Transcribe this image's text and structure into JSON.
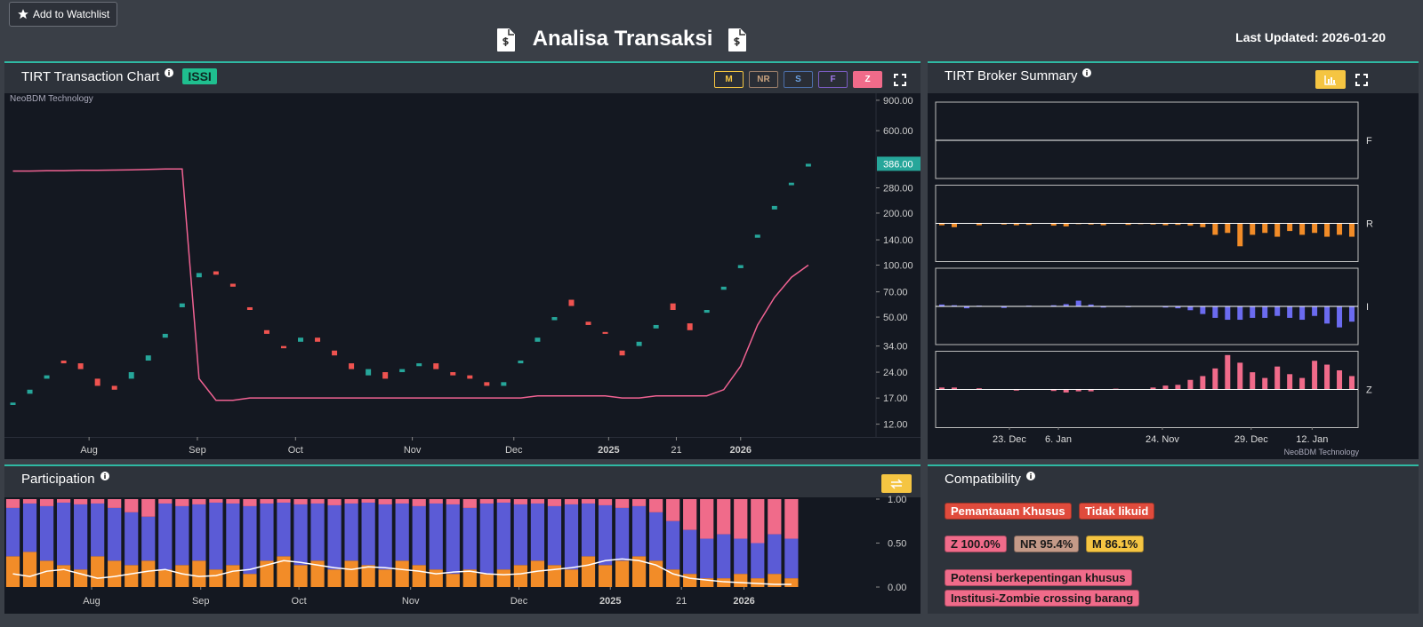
{
  "header": {
    "watchlist_button": "Add to Watchlist",
    "title": "Analisa Transaksi",
    "last_updated": "Last Updated: 2026-01-20"
  },
  "transaction_chart": {
    "title": "TIRT Transaction Chart",
    "badge": "ISSI",
    "buttons": [
      "M",
      "NR",
      "S",
      "F",
      "Z"
    ],
    "watermark": "NeoBDM Technology",
    "chart_data": {
      "type": "candlestick",
      "yscale": "log",
      "up_color": "#26a69a",
      "down_color": "#ef5350",
      "x": [
        0,
        1,
        2,
        3,
        4,
        5,
        6,
        7,
        8,
        9,
        10,
        11,
        12,
        13,
        14,
        15,
        16,
        17,
        18,
        19,
        20,
        21,
        22,
        23,
        24,
        25,
        26,
        27,
        28,
        29,
        30,
        31,
        32,
        33,
        34,
        35,
        36,
        37,
        38,
        39,
        40,
        41,
        42,
        43,
        44,
        45,
        46,
        47
      ],
      "open": [
        15.5,
        18,
        22,
        28,
        27,
        22,
        20,
        22,
        28,
        38,
        57,
        85,
        92,
        78,
        57,
        42,
        34,
        36,
        38,
        32,
        27,
        23,
        24,
        24,
        26,
        27,
        24,
        23,
        21,
        20,
        27,
        36,
        48,
        63,
        47,
        41,
        32,
        34,
        43,
        60,
        46,
        53,
        72,
        96,
        144,
        210,
        290,
        372
      ],
      "close": [
        16,
        19,
        23,
        27,
        25,
        20,
        19,
        24,
        30,
        40,
        60,
        90,
        88,
        75,
        55,
        40,
        33,
        38,
        36,
        30,
        25,
        25,
        22,
        25,
        27,
        25,
        23,
        22,
        20,
        21,
        28,
        38,
        50,
        58,
        45,
        40,
        30,
        36,
        45,
        55,
        42,
        55,
        75,
        100,
        150,
        220,
        300,
        386
      ],
      "line": {
        "color": "#f06292",
        "values": [
          350,
          350,
          352,
          352,
          354,
          354,
          355,
          356,
          358,
          360,
          360,
          22,
          16.5,
          16.5,
          17,
          17,
          17,
          17,
          17,
          17,
          17,
          17,
          17,
          17,
          17,
          17,
          17,
          17,
          17,
          17,
          17,
          17.5,
          17.5,
          17.5,
          17.5,
          17.5,
          17,
          17,
          17.5,
          17.5,
          17.5,
          17.5,
          19,
          26,
          45,
          65,
          85,
          100
        ]
      },
      "last_price": {
        "value": 386,
        "label": "386.00"
      },
      "xlim": [
        -0.5,
        51
      ],
      "ylim": [
        10,
        1000
      ],
      "xticks": [
        {
          "value": 4.5,
          "label": "Aug"
        },
        {
          "value": 10.9,
          "label": "Sep"
        },
        {
          "value": 16.7,
          "label": "Oct"
        },
        {
          "value": 23.6,
          "label": "Nov"
        },
        {
          "value": 29.6,
          "label": "Dec"
        },
        {
          "value": 35.2,
          "label": "2025"
        },
        {
          "value": 39.2,
          "label": "21"
        },
        {
          "value": 43,
          "label": "2026"
        }
      ],
      "yticks": [
        {
          "value": 900,
          "label": "900.00"
        },
        {
          "value": 600,
          "label": "600.00"
        },
        {
          "value": 280,
          "label": "280.00"
        },
        {
          "value": 200,
          "label": "200.00"
        },
        {
          "value": 140,
          "label": "140.00"
        },
        {
          "value": 100,
          "label": "100.00"
        },
        {
          "value": 70,
          "label": "70.00"
        },
        {
          "value": 50,
          "label": "50.00"
        },
        {
          "value": 34,
          "label": "34.00"
        },
        {
          "value": 24,
          "label": "24.00"
        },
        {
          "value": 17,
          "label": "17.00"
        },
        {
          "value": 12,
          "label": "12.00"
        }
      ]
    }
  },
  "broker_summary": {
    "title": "TIRT Broker Summary",
    "watermark": "NeoBDM Technology",
    "chart_data": {
      "type": "bar",
      "xlim": [
        -0.5,
        33.5
      ],
      "ylim": [
        -1,
        1
      ],
      "xticks": [
        {
          "value": 5.44,
          "label": "23. Dec"
        },
        {
          "value": 9.38,
          "label": "6. Jan"
        },
        {
          "value": 17.75,
          "label": "24. Nov"
        },
        {
          "value": 24.9,
          "label": "29. Dec"
        },
        {
          "value": 29.8,
          "label": "12. Jan"
        }
      ],
      "series": [
        {
          "name": "F",
          "color": "#ffffff",
          "values": [
            0,
            0,
            0,
            0,
            0,
            0,
            0,
            0,
            0,
            0,
            0,
            0,
            0,
            0,
            0,
            0,
            0,
            0,
            0,
            0,
            0,
            0,
            0,
            0,
            0,
            0,
            0,
            0,
            0,
            0,
            0,
            0,
            0,
            0
          ]
        },
        {
          "name": "R",
          "color": "#f28c28",
          "values": [
            -0.05,
            -0.1,
            0,
            -0.05,
            0,
            -0.03,
            -0.05,
            -0.04,
            0,
            -0.06,
            -0.08,
            -0.02,
            -0.03,
            -0.05,
            0,
            -0.04,
            -0.02,
            -0.03,
            -0.05,
            -0.04,
            -0.06,
            -0.1,
            -0.3,
            -0.25,
            -0.6,
            -0.3,
            -0.25,
            -0.35,
            -0.2,
            -0.3,
            -0.25,
            -0.35,
            -0.3,
            -0.35
          ]
        },
        {
          "name": "I",
          "color": "#6b6bf0",
          "values": [
            0.05,
            0.03,
            -0.05,
            0.02,
            0,
            -0.04,
            0,
            0.02,
            0,
            0.03,
            0.06,
            0.15,
            0.05,
            -0.03,
            0,
            -0.02,
            0,
            0,
            -0.03,
            -0.05,
            -0.1,
            -0.2,
            -0.3,
            -0.35,
            -0.35,
            -0.3,
            -0.3,
            -0.25,
            -0.3,
            -0.35,
            -0.25,
            -0.45,
            -0.55,
            -0.4
          ]
        },
        {
          "name": "Z",
          "color": "#f06b8a",
          "values": [
            0.05,
            0.05,
            0,
            0.03,
            0,
            0,
            -0.03,
            0,
            0,
            -0.04,
            -0.08,
            -0.05,
            -0.05,
            0,
            0.02,
            0,
            0,
            0.05,
            0.1,
            0.12,
            0.25,
            0.35,
            0.55,
            0.9,
            0.7,
            0.45,
            0.3,
            0.6,
            0.4,
            0.3,
            0.75,
            0.65,
            0.5,
            0.35
          ]
        }
      ]
    }
  },
  "participation": {
    "title": "Participation",
    "chart_data": {
      "type": "stacked_bar",
      "xlim": [
        -0.5,
        51
      ],
      "ylim": [
        0,
        1
      ],
      "x": [
        0,
        1,
        2,
        3,
        4,
        5,
        6,
        7,
        8,
        9,
        10,
        11,
        12,
        13,
        14,
        15,
        16,
        17,
        18,
        19,
        20,
        21,
        22,
        23,
        24,
        25,
        26,
        27,
        28,
        29,
        30,
        31,
        32,
        33,
        34,
        35,
        36,
        37,
        38,
        39,
        40,
        41,
        42,
        43,
        44,
        45,
        46
      ],
      "xticks": [
        {
          "value": 4.65,
          "label": "Aug"
        },
        {
          "value": 11.1,
          "label": "Sep"
        },
        {
          "value": 16.9,
          "label": "Oct"
        },
        {
          "value": 23.5,
          "label": "Nov"
        },
        {
          "value": 29.9,
          "label": "Dec"
        },
        {
          "value": 35.3,
          "label": "2025"
        },
        {
          "value": 39.5,
          "label": "21"
        },
        {
          "value": 43.2,
          "label": "2026"
        }
      ],
      "yticks": [
        {
          "value": 1,
          "label": "1.00"
        },
        {
          "value": 0.5,
          "label": "0.50"
        },
        {
          "value": 0,
          "label": "0.00"
        }
      ],
      "series": [
        {
          "color": "#f28c28",
          "values": [
            0.35,
            0.4,
            0.3,
            0.25,
            0.2,
            0.35,
            0.3,
            0.25,
            0.3,
            0.2,
            0.25,
            0.3,
            0.2,
            0.25,
            0.15,
            0.3,
            0.35,
            0.25,
            0.3,
            0.2,
            0.3,
            0.25,
            0.2,
            0.3,
            0.25,
            0.2,
            0.15,
            0.2,
            0.15,
            0.2,
            0.25,
            0.3,
            0.25,
            0.2,
            0.35,
            0.25,
            0.3,
            0.35,
            0.3,
            0.2,
            0.15,
            0.1,
            0.1,
            0.15,
            0.1,
            0.15,
            0.1
          ]
        },
        {
          "color": "#5b5bd6",
          "values": [
            0.55,
            0.55,
            0.62,
            0.71,
            0.74,
            0.6,
            0.6,
            0.6,
            0.5,
            0.75,
            0.67,
            0.64,
            0.76,
            0.7,
            0.77,
            0.65,
            0.61,
            0.69,
            0.65,
            0.73,
            0.65,
            0.71,
            0.74,
            0.65,
            0.67,
            0.75,
            0.79,
            0.7,
            0.8,
            0.76,
            0.69,
            0.65,
            0.67,
            0.74,
            0.6,
            0.68,
            0.6,
            0.57,
            0.55,
            0.55,
            0.5,
            0.45,
            0.5,
            0.4,
            0.4,
            0.45,
            0.45
          ]
        },
        {
          "color": "#f06b8a",
          "values": [
            0.1,
            0.05,
            0.08,
            0.04,
            0.06,
            0.05,
            0.1,
            0.15,
            0.2,
            0.05,
            0.08,
            0.06,
            0.04,
            0.05,
            0.08,
            0.05,
            0.04,
            0.06,
            0.05,
            0.07,
            0.05,
            0.04,
            0.06,
            0.05,
            0.08,
            0.05,
            0.06,
            0.1,
            0.05,
            0.04,
            0.06,
            0.05,
            0.08,
            0.06,
            0.05,
            0.07,
            0.1,
            0.08,
            0.15,
            0.25,
            0.35,
            0.45,
            0.4,
            0.45,
            0.5,
            0.4,
            0.45
          ]
        }
      ],
      "line": {
        "color": "#ffffff",
        "values": [
          0.15,
          0.12,
          0.18,
          0.2,
          0.15,
          0.1,
          0.12,
          0.15,
          0.18,
          0.2,
          0.15,
          0.12,
          0.13,
          0.18,
          0.2,
          0.25,
          0.3,
          0.28,
          0.25,
          0.22,
          0.2,
          0.23,
          0.22,
          0.2,
          0.18,
          0.15,
          0.17,
          0.18,
          0.15,
          0.14,
          0.15,
          0.18,
          0.2,
          0.22,
          0.25,
          0.3,
          0.32,
          0.3,
          0.25,
          0.15,
          0.1,
          0.08,
          0.06,
          0.05,
          0.04,
          0.03,
          0.03
        ]
      }
    }
  },
  "compatibility": {
    "title": "Compatibility",
    "tag_rows": [
      [
        {
          "text": "Pemantauan Khusus",
          "bg": "#e04b3c",
          "fg": "#ffffff"
        },
        {
          "text": "Tidak likuid",
          "bg": "#e04b3c",
          "fg": "#ffffff"
        }
      ],
      [
        {
          "text": "Z 100.0%",
          "bg": "#f06b8a",
          "fg": "#1a1a1a"
        },
        {
          "text": "NR 95.4%",
          "bg": "#c49a88",
          "fg": "#1a1a1a"
        },
        {
          "text": "M 86.1%",
          "bg": "#f5c542",
          "fg": "#1a1a1a"
        }
      ],
      [
        {
          "text": "Potensi berkepentingan khusus",
          "bg": "#f06b8a",
          "fg": "#1a1a1a"
        }
      ],
      [
        {
          "text": "Institusi-Zombie crossing barang",
          "bg": "#f06b8a",
          "fg": "#1a1a1a"
        }
      ]
    ]
  }
}
